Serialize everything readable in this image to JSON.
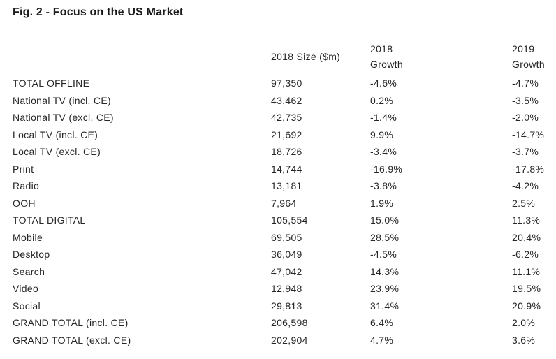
{
  "figure": {
    "title": "Fig. 2 - Focus on the US Market"
  },
  "table": {
    "headers": {
      "label": "",
      "size": "2018 Size ($m)",
      "growth_2018_line1": "2018",
      "growth_2018_line2": "Growth",
      "growth_2019_line1": "2019",
      "growth_2019_line2": "Growth"
    },
    "rows": [
      {
        "label": "TOTAL OFFLINE",
        "size": "97,350",
        "g2018": "-4.6%",
        "g2019": "-4.7%"
      },
      {
        "label": "National TV (incl. CE)",
        "size": "43,462",
        "g2018": "0.2%",
        "g2019": "-3.5%"
      },
      {
        "label": "National TV (excl. CE)",
        "size": "42,735",
        "g2018": "-1.4%",
        "g2019": "-2.0%"
      },
      {
        "label": "Local TV (incl. CE)",
        "size": "21,692",
        "g2018": "9.9%",
        "g2019": "-14.7%"
      },
      {
        "label": "Local TV (excl. CE)",
        "size": "18,726",
        "g2018": "-3.4%",
        "g2019": "-3.7%"
      },
      {
        "label": "Print",
        "size": "14,744",
        "g2018": "-16.9%",
        "g2019": "-17.8%"
      },
      {
        "label": "Radio",
        "size": "13,181",
        "g2018": "-3.8%",
        "g2019": "-4.2%"
      },
      {
        "label": "OOH",
        "size": "7,964",
        "g2018": "1.9%",
        "g2019": "2.5%"
      },
      {
        "label": "TOTAL DIGITAL",
        "size": "105,554",
        "g2018": "15.0%",
        "g2019": "11.3%"
      },
      {
        "label": "Mobile",
        "size": "69,505",
        "g2018": "28.5%",
        "g2019": "20.4%"
      },
      {
        "label": "Desktop",
        "size": "36,049",
        "g2018": "-4.5%",
        "g2019": "-6.2%"
      },
      {
        "label": "Search",
        "size": "47,042",
        "g2018": "14.3%",
        "g2019": "11.1%"
      },
      {
        "label": "Video",
        "size": "12,948",
        "g2018": "23.9%",
        "g2019": "19.5%"
      },
      {
        "label": "Social",
        "size": "29,813",
        "g2018": "31.4%",
        "g2019": "20.9%"
      },
      {
        "label": "GRAND TOTAL (incl. CE)",
        "size": "206,598",
        "g2018": "6.4%",
        "g2019": "2.0%"
      },
      {
        "label": "GRAND TOTAL (excl. CE)",
        "size": "202,904",
        "g2018": "4.7%",
        "g2019": "3.6%"
      }
    ]
  },
  "colors": {
    "background": "#ffffff",
    "title_text": "#1a1a1a",
    "body_text": "#262626"
  },
  "chart_data": {
    "type": "table",
    "title": "Fig. 2 - Focus on the US Market",
    "columns": [
      "",
      "2018 Size ($m)",
      "2018 Growth",
      "2019 Growth"
    ],
    "units": {
      "size": "USD millions",
      "growth": "percent year-on-year"
    },
    "rows": [
      [
        "TOTAL OFFLINE",
        97350,
        -4.6,
        -4.7
      ],
      [
        "National TV (incl. CE)",
        43462,
        0.2,
        -3.5
      ],
      [
        "National TV (excl. CE)",
        42735,
        -1.4,
        -2.0
      ],
      [
        "Local TV (incl. CE)",
        21692,
        9.9,
        -14.7
      ],
      [
        "Local TV (excl. CE)",
        18726,
        -3.4,
        -3.7
      ],
      [
        "Print",
        14744,
        -16.9,
        -17.8
      ],
      [
        "Radio",
        13181,
        -3.8,
        -4.2
      ],
      [
        "OOH",
        7964,
        1.9,
        2.5
      ],
      [
        "TOTAL DIGITAL",
        105554,
        15.0,
        11.3
      ],
      [
        "Mobile",
        69505,
        28.5,
        20.4
      ],
      [
        "Desktop",
        36049,
        -4.5,
        -6.2
      ],
      [
        "Search",
        47042,
        14.3,
        11.1
      ],
      [
        "Video",
        12948,
        23.9,
        19.5
      ],
      [
        "Social",
        29813,
        31.4,
        20.9
      ],
      [
        "GRAND TOTAL (incl. CE)",
        206598,
        6.4,
        2.0
      ],
      [
        "GRAND TOTAL (excl. CE)",
        202904,
        4.7,
        3.6
      ]
    ]
  }
}
